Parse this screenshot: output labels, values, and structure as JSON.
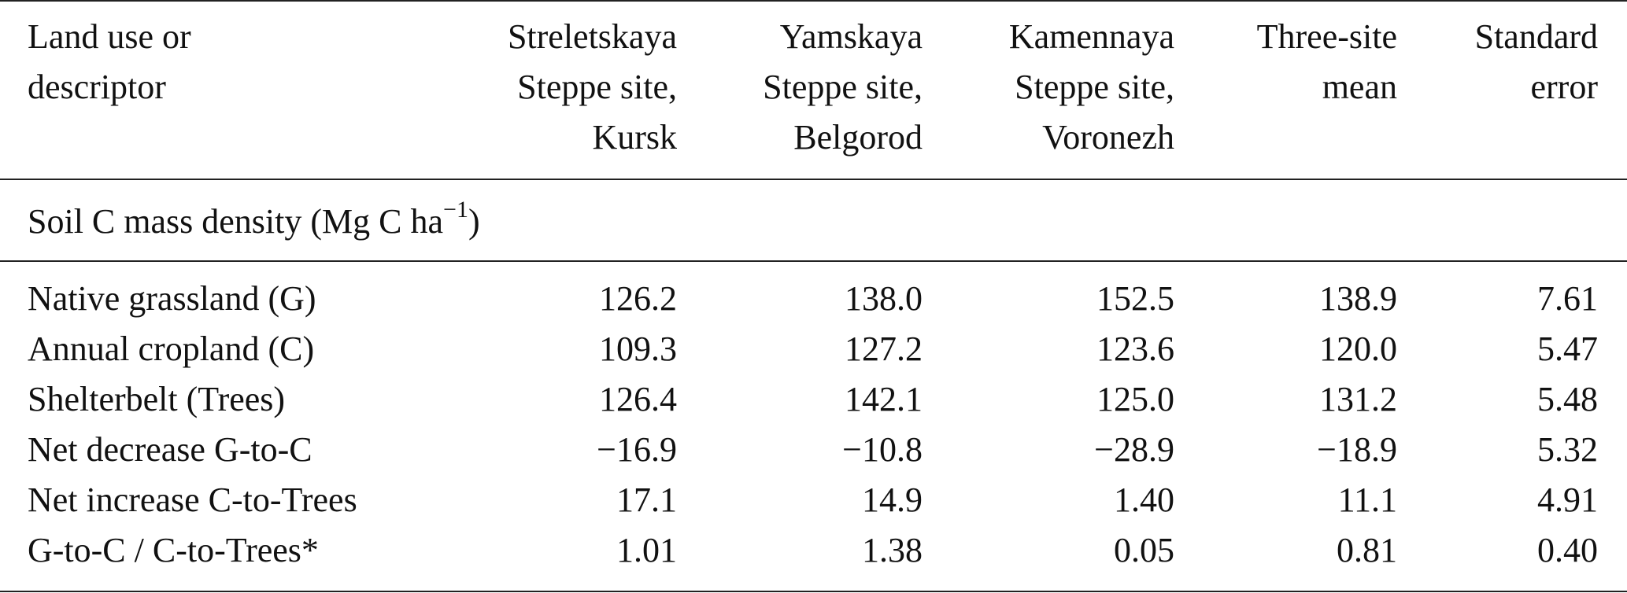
{
  "table": {
    "header": [
      [
        "Land use or",
        "descriptor"
      ],
      [
        "Streletskaya",
        "Steppe site,",
        "Kursk"
      ],
      [
        "Yamskaya",
        "Steppe site,",
        "Belgorod"
      ],
      [
        "Kamennaya",
        "Steppe site,",
        "Voronezh"
      ],
      [
        "Three-site",
        "mean"
      ],
      [
        "Standard",
        "error"
      ]
    ],
    "section": {
      "text": "Soil C mass density (Mg C ha",
      "sup": "−1",
      "after": ")"
    },
    "rows": [
      [
        "Native grassland (G)",
        "126.2",
        "138.0",
        "152.5",
        "138.9",
        "7.61"
      ],
      [
        "Annual cropland (C)",
        "109.3",
        "127.2",
        "123.6",
        "120.0",
        "5.47"
      ],
      [
        "Shelterbelt (Trees)",
        "126.4",
        "142.1",
        "125.0",
        "131.2",
        "5.48"
      ],
      [
        "Net decrease G-to-C",
        "−16.9",
        "−10.8",
        "−28.9",
        "−18.9",
        "5.32"
      ],
      [
        "Net increase C-to-Trees",
        "17.1",
        "14.9",
        "1.40",
        "11.1",
        "4.91"
      ],
      [
        "G-to-C / C-to-Trees*",
        "1.01",
        "1.38",
        "0.05",
        "0.81",
        "0.40"
      ]
    ]
  }
}
